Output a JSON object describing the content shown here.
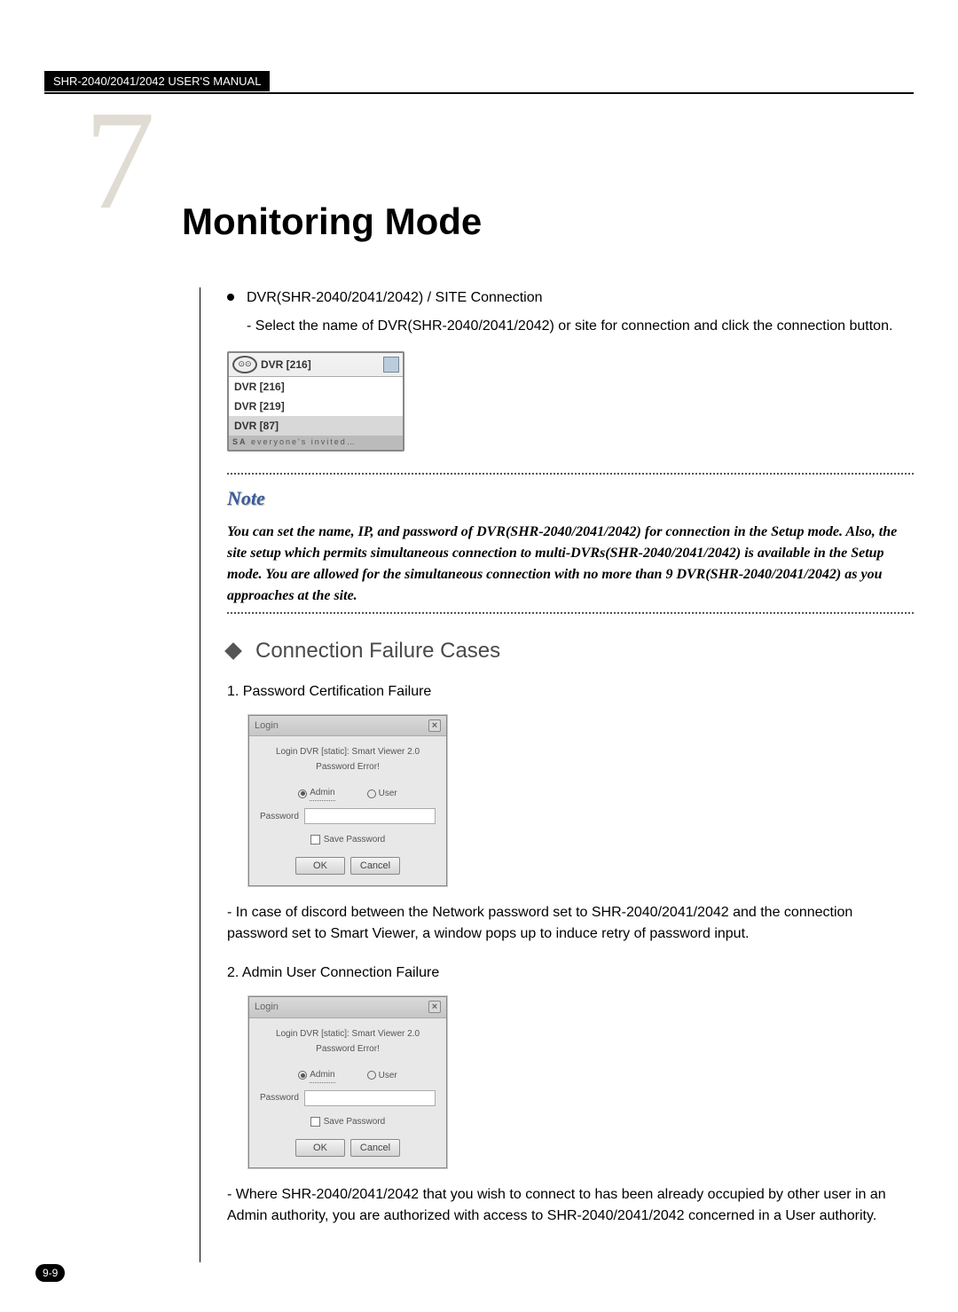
{
  "header": {
    "manual_title": "SHR-2040/2041/2042 USER'S MANUAL"
  },
  "chapter": {
    "number": "7",
    "title": "Monitoring Mode"
  },
  "bullet1": {
    "title": "DVR(SHR-2040/2041/2042) / SITE Connection",
    "sub": "- Select the name of DVR(SHR-2040/2041/2042) or site for connection and click the connection button."
  },
  "dropdown": {
    "icon_text": "⊙⊙",
    "selected": "DVR [216]",
    "items": [
      "DVR [216]",
      "DVR [219]",
      "DVR [87]"
    ],
    "footer_prefix": "SA",
    "footer_suffix": "everyone's invited…"
  },
  "note": {
    "heading": "Note",
    "body": "You can set the name, IP, and password of DVR(SHR-2040/2041/2042) for connection in the Setup mode. Also, the site setup which permits simultaneous connection to multi-DVRs(SHR-2040/2041/2042) is available in the Setup mode. You are allowed for the simultaneous connection with no more than 9 DVR(SHR-2040/2041/2042) as you approaches at the site."
  },
  "section": {
    "heading": "Connection Failure Cases"
  },
  "case1": {
    "num_title": "1. Password Certification Failure",
    "explain": "- In case of discord between the Network password set to SHR-2040/2041/2042 and the connection password set to Smart Viewer, a window pops up to induce retry of password input."
  },
  "case2": {
    "num_title": "2. Admin User Connection Failure",
    "explain": "- Where SHR-2040/2041/2042 that you wish to connect to has been already occupied by other user in an Admin authority, you are authorized with access to SHR-2040/2041/2042 concerned in a User authority."
  },
  "login": {
    "title": "Login",
    "msg1": "Login DVR [static]: Smart Viewer 2.0",
    "msg2": "Password Error!",
    "admin": "Admin",
    "user": "User",
    "pw_label": "Password",
    "save_pw": "Save Password",
    "ok": "OK",
    "cancel": "Cancel",
    "close_x": "×"
  },
  "page_number": "9-9",
  "colors": {
    "chapter_num": "#e0dcd4",
    "note_heading": "#3a5b9b",
    "section_text": "#4a4a4a"
  }
}
